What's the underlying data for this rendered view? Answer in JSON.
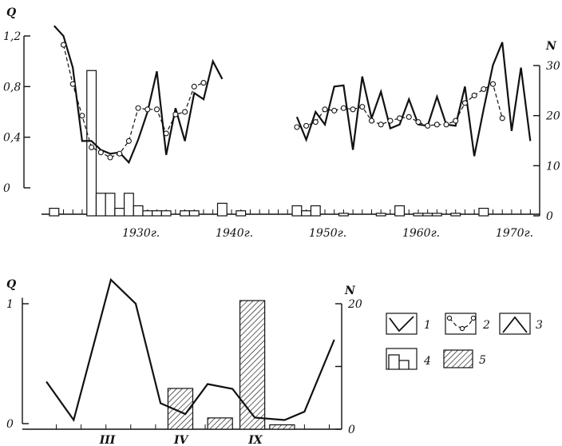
{
  "chart_data": [
    {
      "type": "line",
      "left_axis": {
        "title": "Q",
        "ticks": [
          {
            "v": 0,
            "label": "0"
          },
          {
            "v": 0.4,
            "label": "0,4"
          },
          {
            "v": 0.8,
            "label": "0,8"
          },
          {
            "v": 1.2,
            "label": "1,2"
          }
        ],
        "lim": [
          -0.25,
          1.3
        ]
      },
      "right_axis": {
        "title": "N",
        "ticks": [
          {
            "v": 0,
            "label": "0"
          },
          {
            "v": 10,
            "label": "10"
          },
          {
            "v": 20,
            "label": "20"
          },
          {
            "v": 30,
            "label": "30"
          }
        ],
        "lim": [
          0,
          31
        ]
      },
      "x_ticks": [
        {
          "v": 1930,
          "label": "1930г."
        },
        {
          "v": 1940,
          "label": "1940г."
        },
        {
          "v": 1950,
          "label": "1950г."
        },
        {
          "v": 1960,
          "label": "1960г."
        },
        {
          "v": 1970,
          "label": "1970г."
        }
      ],
      "xlim": [
        1920.5,
        1973
      ],
      "series": [
        {
          "key": "line3",
          "style": "solid",
          "points": [
            [
              1921,
              1.28
            ],
            [
              1922,
              1.2
            ],
            [
              1923,
              0.95
            ],
            [
              1924,
              0.37
            ],
            [
              1925,
              0.37
            ],
            [
              1926,
              0.3
            ],
            [
              1927,
              0.27
            ],
            [
              1928,
              0.28
            ],
            [
              1929,
              0.2
            ],
            [
              1930,
              0.38
            ],
            [
              1931,
              0.6
            ],
            [
              1932,
              0.92
            ],
            [
              1933,
              0.26
            ],
            [
              1934,
              0.63
            ],
            [
              1935,
              0.37
            ],
            [
              1936,
              0.75
            ],
            [
              1937,
              0.7
            ],
            [
              1938,
              1.0
            ],
            [
              1939,
              0.86
            ]
          ]
        },
        {
          "key": "line3",
          "style": "solid",
          "points": [
            [
              1947,
              0.56
            ],
            [
              1948,
              0.38
            ],
            [
              1949,
              0.6
            ],
            [
              1950,
              0.5
            ],
            [
              1951,
              0.8
            ],
            [
              1952,
              0.81
            ],
            [
              1953,
              0.3
            ],
            [
              1954,
              0.88
            ],
            [
              1955,
              0.55
            ],
            [
              1956,
              0.76
            ],
            [
              1957,
              0.47
            ],
            [
              1958,
              0.5
            ],
            [
              1959,
              0.7
            ],
            [
              1960,
              0.5
            ],
            [
              1961,
              0.49
            ],
            [
              1962,
              0.72
            ],
            [
              1963,
              0.5
            ],
            [
              1964,
              0.49
            ],
            [
              1965,
              0.8
            ],
            [
              1966,
              0.25
            ],
            [
              1967,
              0.62
            ],
            [
              1968,
              0.97
            ],
            [
              1969,
              1.15
            ],
            [
              1970,
              0.45
            ],
            [
              1971,
              0.95
            ],
            [
              1972,
              0.37
            ]
          ]
        },
        {
          "key": "line2",
          "style": "dashed",
          "marker": "circle",
          "points": [
            [
              1922,
              1.13
            ],
            [
              1923,
              0.82
            ],
            [
              1924,
              0.57
            ],
            [
              1925,
              0.32
            ],
            [
              1926,
              0.28
            ],
            [
              1927,
              0.24
            ],
            [
              1928,
              0.27
            ],
            [
              1929,
              0.37
            ],
            [
              1930,
              0.63
            ],
            [
              1931,
              0.62
            ],
            [
              1932,
              0.62
            ],
            [
              1933,
              0.43
            ],
            [
              1934,
              0.58
            ],
            [
              1935,
              0.6
            ],
            [
              1936,
              0.8
            ],
            [
              1937,
              0.83
            ]
          ]
        },
        {
          "key": "line2",
          "style": "dashed",
          "marker": "circle",
          "points": [
            [
              1947,
              0.48
            ],
            [
              1948,
              0.49
            ],
            [
              1949,
              0.52
            ],
            [
              1950,
              0.62
            ],
            [
              1951,
              0.61
            ],
            [
              1952,
              0.63
            ],
            [
              1953,
              0.62
            ],
            [
              1954,
              0.64
            ],
            [
              1955,
              0.53
            ],
            [
              1956,
              0.5
            ],
            [
              1957,
              0.53
            ],
            [
              1958,
              0.55
            ],
            [
              1959,
              0.56
            ],
            [
              1960,
              0.52
            ],
            [
              1961,
              0.49
            ],
            [
              1962,
              0.5
            ],
            [
              1963,
              0.5
            ],
            [
              1964,
              0.53
            ],
            [
              1965,
              0.67
            ],
            [
              1966,
              0.73
            ],
            [
              1967,
              0.78
            ],
            [
              1968,
              0.82
            ],
            [
              1969,
              0.55
            ]
          ]
        }
      ],
      "bars": {
        "key": "bars4",
        "axis": "right",
        "width": 1.0,
        "values": [
          [
            1921,
            1.5
          ],
          [
            1925,
            29
          ],
          [
            1926,
            4.5
          ],
          [
            1927,
            4.5
          ],
          [
            1928,
            1.5
          ],
          [
            1929,
            4.5
          ],
          [
            1930,
            2
          ],
          [
            1931,
            1
          ],
          [
            1932,
            1
          ],
          [
            1933,
            1
          ],
          [
            1935,
            1
          ],
          [
            1936,
            1
          ],
          [
            1939,
            2.5
          ],
          [
            1941,
            1
          ],
          [
            1947,
            2
          ],
          [
            1948,
            1
          ],
          [
            1949,
            2
          ],
          [
            1952,
            0.5
          ],
          [
            1956,
            0.5
          ],
          [
            1958,
            2
          ],
          [
            1960,
            0.5
          ],
          [
            1961,
            0.5
          ],
          [
            1962,
            0.5
          ],
          [
            1964,
            0.5
          ],
          [
            1967,
            1.5
          ]
        ]
      }
    },
    {
      "type": "line",
      "left_axis": {
        "title": "Q",
        "ticks": [
          {
            "v": 0,
            "label": "0"
          },
          {
            "v": 1,
            "label": "1"
          }
        ],
        "lim": [
          -0.05,
          1.25
        ]
      },
      "right_axis": {
        "title": "N",
        "ticks": [
          {
            "v": 0,
            "label": "0"
          },
          {
            "v": 10,
            "label": ""
          },
          {
            "v": 20,
            "label": "20"
          }
        ],
        "lim": [
          0,
          23
        ]
      },
      "x_ticks": [
        {
          "v": 3,
          "label": "III"
        },
        {
          "v": 6,
          "label": "IV"
        },
        {
          "v": 9,
          "label": "IX"
        }
      ],
      "xlim": [
        0.5,
        12.5
      ],
      "series": [
        {
          "key": "line1",
          "style": "solid",
          "points": [
            [
              0.6,
              0.35
            ],
            [
              1.7,
              0.03
            ],
            [
              3.2,
              1.2
            ],
            [
              4.2,
              1.0
            ],
            [
              5.2,
              0.17
            ],
            [
              6.2,
              0.08
            ],
            [
              7.1,
              0.33
            ],
            [
              8.1,
              0.29
            ],
            [
              9.0,
              0.05
            ],
            [
              10.2,
              0.03
            ],
            [
              11.0,
              0.1
            ],
            [
              12.2,
              0.7
            ]
          ]
        }
      ],
      "bars": {
        "key": "bars5",
        "axis": "right",
        "hatched": true,
        "values": [
          [
            6.0,
            6.5
          ],
          [
            7.6,
            1.8
          ],
          [
            8.9,
            20.5
          ],
          [
            10.1,
            0.7
          ]
        ]
      }
    }
  ],
  "legend": [
    {
      "num": "1",
      "symbol": "check"
    },
    {
      "num": "2",
      "symbol": "dashed-circles"
    },
    {
      "num": "3",
      "symbol": "peak"
    },
    {
      "num": "4",
      "symbol": "open-bars"
    },
    {
      "num": "5",
      "symbol": "hatched-bar"
    }
  ]
}
